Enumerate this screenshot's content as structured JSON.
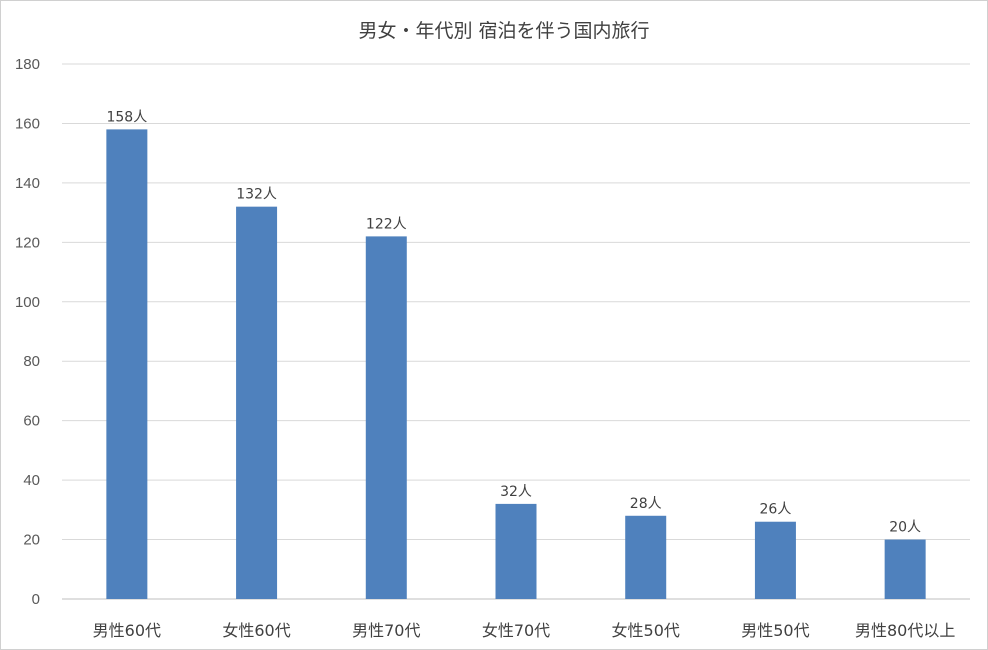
{
  "chart_data": {
    "type": "bar",
    "title": "男女・年代別 宿泊を伴う国内旅行",
    "categories": [
      "男性60代",
      "女性60代",
      "男性70代",
      "女性70代",
      "女性50代",
      "男性50代",
      "男性80代以上"
    ],
    "values": [
      158,
      132,
      122,
      32,
      28,
      26,
      20
    ],
    "data_labels": [
      "158人",
      "132人",
      "122人",
      "32人",
      "28人",
      "26人",
      "20人"
    ],
    "ylim": [
      0,
      180
    ],
    "yticks": [
      0,
      20,
      40,
      60,
      80,
      100,
      120,
      140,
      160,
      180
    ],
    "grid": true,
    "legend": "none",
    "bar_color": "#4f81bd"
  }
}
